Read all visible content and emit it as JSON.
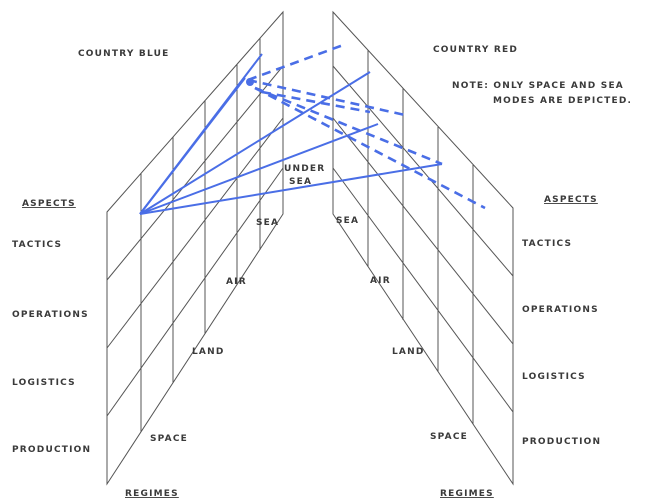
{
  "labels": {
    "country_blue": "COUNTRY BLUE",
    "country_red": "COUNTRY RED",
    "note_line1": "NOTE: ONLY SPACE AND SEA",
    "note_line2": "MODES ARE DEPICTED.",
    "aspects_left": "ASPECTS",
    "aspects_right": "ASPECTS",
    "regimes_left": "REGIMES",
    "regimes_right": "REGIMES"
  },
  "left_aspects": [
    "TACTICS",
    "OPERATIONS",
    "LOGISTICS",
    "PRODUCTION"
  ],
  "right_aspects": [
    "TACTICS",
    "OPERATIONS",
    "LOGISTICS",
    "PRODUCTION"
  ],
  "left_regimes": [
    "SPACE",
    "LAND",
    "AIR",
    "SEA",
    "UNDER SEA"
  ],
  "right_regimes": [
    "SPACE",
    "LAND",
    "AIR",
    "SEA"
  ],
  "connection_color": "#4a6ee6"
}
